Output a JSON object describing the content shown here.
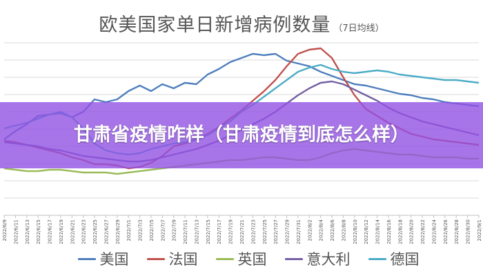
{
  "banner": {
    "text": "甘肃省疫情咋样（甘肃疫情到底怎么样）"
  },
  "chart_data": {
    "type": "line",
    "title": "欧美国家单日新增病例数量",
    "subtitle": "（7日均线）",
    "x": [
      "2022/6/9",
      "2022/6/11",
      "2022/6/13",
      "2022/6/15",
      "2022/6/17",
      "2022/6/19",
      "2022/6/21",
      "2022/6/23",
      "2022/6/25",
      "2022/6/27",
      "2022/6/29",
      "2022/7/1",
      "2022/7/3",
      "2022/7/5",
      "2022/7/7",
      "2022/7/9",
      "2022/7/11",
      "2022/7/13",
      "2022/7/15",
      "2022/7/17",
      "2022/7/19",
      "2022/7/21",
      "2022/7/23",
      "2022/7/25",
      "2022/7/27",
      "2022/7/29",
      "2022/7/31",
      "2022/8/2",
      "2022/8/4",
      "2022/8/6",
      "2022/8/8",
      "2022/8/10",
      "2022/8/12",
      "2022/8/14",
      "2022/8/16",
      "2022/8/18",
      "2022/8/20",
      "2022/8/22",
      "2022/8/24",
      "2022/8/26",
      "2022/8/28",
      "2022/8/30",
      "2022/9/1"
    ],
    "tick_labels": [
      "2022/6/9",
      "2022/6/11",
      "2022/6/13",
      "2022/6/15",
      "2022/6/17",
      "2022/6/19",
      "2022/6/21",
      "2022/6/23",
      "2022/6/25",
      "2022/6/27",
      "2022/6/29",
      "2022/7/1",
      "2022/7/3",
      "2022/7/5",
      "2022/7/7",
      "2022/7/9",
      "2022/7/11",
      "2022/7/13",
      "2022/7/15",
      "2022/7/17",
      "2022/7/19",
      "2022/7/21",
      "2022/7/23",
      "2022/7/25",
      "2022/7/27",
      "2022/7/29",
      "2022/7/31",
      "2022/8/2",
      "2022/8/4",
      "2022/8/6",
      "2022/8/8",
      "2022/8/10",
      "2022/8/12",
      "2022/8/14",
      "2022/8/16",
      "2022/8/18",
      "2022/8/20",
      "2022/8/22",
      "2022/8/24",
      "2022/8/26",
      "2022/8/28",
      "2022/8/30",
      "2022/9/1"
    ],
    "ylim": [
      0,
      125
    ],
    "grid": true,
    "legend_position": "bottom",
    "series": [
      {
        "name": "美国",
        "color": "#4e7fbd",
        "values": [
          55,
          61,
          66,
          72,
          73,
          74,
          71,
          75,
          84,
          82,
          84,
          90,
          94,
          90,
          95,
          92,
          96,
          95,
          102,
          106,
          111,
          114,
          117,
          116,
          117,
          112,
          110,
          108,
          104,
          101,
          98,
          95,
          94,
          92,
          90,
          88,
          87,
          85,
          84,
          82,
          81,
          80,
          79
        ]
      },
      {
        "name": "法国",
        "color": "#c0504d",
        "values": [
          54,
          53,
          51,
          49,
          47,
          45,
          42,
          40,
          37,
          37,
          36,
          34,
          35,
          38,
          43,
          50,
          52,
          55,
          59,
          64,
          70,
          76,
          83,
          90,
          98,
          108,
          117,
          120,
          121,
          114,
          100,
          87,
          77,
          72,
          67,
          63,
          59,
          57,
          55,
          54,
          53,
          52,
          51
        ]
      },
      {
        "name": "英国",
        "color": "#9bbb59",
        "values": [
          34,
          33,
          32,
          32,
          33,
          33,
          32,
          31,
          31,
          31,
          30,
          31,
          32,
          33,
          34,
          35,
          36,
          37,
          38,
          39,
          40,
          40,
          41,
          42,
          42,
          41,
          40,
          40,
          42,
          45,
          47,
          48,
          47,
          46,
          45,
          44,
          44,
          43,
          42,
          42,
          42,
          41,
          41
        ]
      },
      {
        "name": "意大利",
        "color": "#7460a3",
        "values": [
          53,
          52,
          51,
          50,
          48,
          47,
          45,
          43,
          42,
          41,
          40,
          39,
          39,
          40,
          42,
          44,
          46,
          48,
          51,
          54,
          58,
          62,
          66,
          70,
          75,
          81,
          87,
          92,
          96,
          97,
          95,
          91,
          87,
          83,
          78,
          74,
          71,
          68,
          66,
          64,
          62,
          60,
          58
        ]
      },
      {
        "name": "德国",
        "color": "#4bacc6",
        "values": [
          63,
          65,
          67,
          70,
          73,
          75,
          71,
          63,
          52,
          47,
          45,
          44,
          45,
          48,
          50,
          52,
          53,
          55,
          58,
          63,
          68,
          75,
          80,
          86,
          92,
          98,
          104,
          107,
          109,
          106,
          104,
          103,
          104,
          105,
          104,
          102,
          101,
          100,
          99,
          98,
          98,
          97,
          96
        ]
      }
    ]
  }
}
